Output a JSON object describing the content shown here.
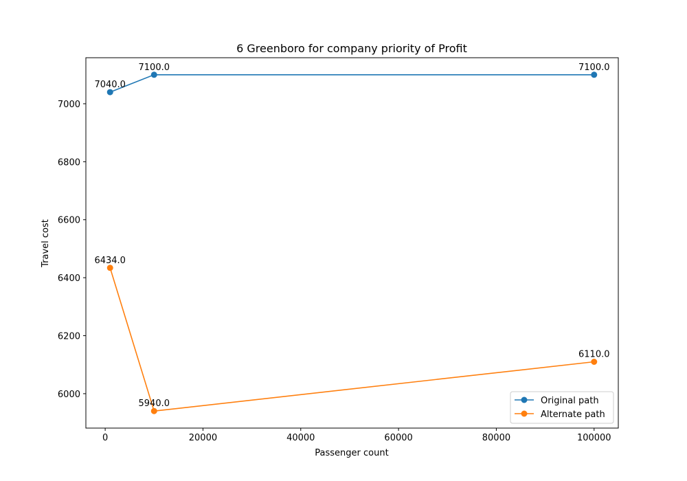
{
  "chart_data": {
    "type": "line",
    "title": "6 Greenboro for company priority of Profit",
    "xlabel": "Passenger count",
    "ylabel": "Travel cost",
    "xlim": [
      -3950,
      104950
    ],
    "ylim": [
      5881.3,
      7158.7
    ],
    "x_ticks": [
      0,
      20000,
      40000,
      60000,
      80000,
      100000
    ],
    "y_ticks": [
      6000,
      6200,
      6400,
      6600,
      6800,
      7000
    ],
    "grid": false,
    "legend_position": "lower right",
    "series": [
      {
        "name": "Original path",
        "color": "#1f77b4",
        "x": [
          1000,
          10000,
          100000
        ],
        "y": [
          7040.0,
          7100.0,
          7100.0
        ],
        "labels": [
          "7040.0",
          "7100.0",
          "7100.0"
        ]
      },
      {
        "name": "Alternate path",
        "color": "#ff7f0e",
        "x": [
          1000,
          10000,
          100000
        ],
        "y": [
          6434.0,
          5940.0,
          6110.0
        ],
        "labels": [
          "6434.0",
          "5940.0",
          "6110.0"
        ]
      }
    ]
  }
}
